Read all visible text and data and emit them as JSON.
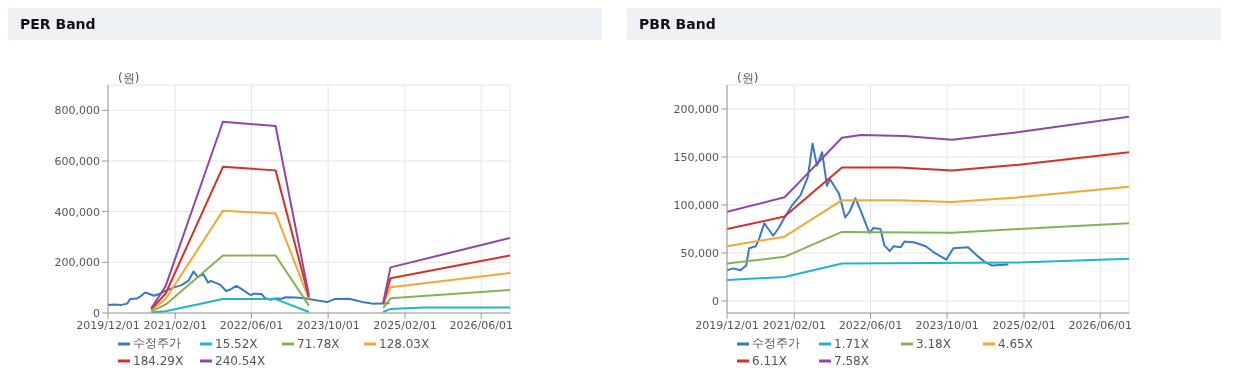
{
  "chart_data": [
    {
      "type": "line",
      "title": "PER Band",
      "ylabel": "(원)",
      "xlim": [
        "2019-12-01",
        "2026-12-01"
      ],
      "ylim": [
        0,
        900000
      ],
      "xticks": [
        {
          "value": "2019-12-01",
          "label": "2019/12/01"
        },
        {
          "value": "2021-02-01",
          "label": "2021/02/01"
        },
        {
          "value": "2022-06-01",
          "label": "2022/06/01"
        },
        {
          "value": "2023-10-01",
          "label": "2023/10/01"
        },
        {
          "value": "2025-02-01",
          "label": "2025/02/01"
        },
        {
          "value": "2026-06-01",
          "label": "2026/06/01"
        }
      ],
      "yticks": [
        {
          "value": 0,
          "label": "0"
        },
        {
          "value": 200000,
          "label": "200,000"
        },
        {
          "value": 400000,
          "label": "400,000"
        },
        {
          "value": 600000,
          "label": "600,000"
        },
        {
          "value": 800000,
          "label": "800,000"
        }
      ],
      "grid": true,
      "legend": "bottom",
      "marker": "none",
      "line_style": "solid",
      "series": [
        {
          "name": "수정주가",
          "color": "#3a78c9",
          "x": [
            "2019-12-01",
            "2020-01-10",
            "2020-02-25",
            "2020-04-01",
            "2020-04-20",
            "2020-06-01",
            "2020-06-25",
            "2020-07-25",
            "2020-09-20",
            "2020-10-25",
            "2020-12-01",
            "2021-01-15",
            "2021-03-12",
            "2021-04-28",
            "2021-05-28",
            "2021-06-25",
            "2021-07-28",
            "2021-08-28",
            "2021-09-15",
            "2021-11-12",
            "2021-12-22",
            "2022-01-18",
            "2022-02-25",
            "2022-03-28",
            "2022-05-25",
            "2022-06-18",
            "2022-08-03",
            "2022-08-28",
            "2022-10-01",
            "2022-10-25",
            "2022-12-10",
            "2023-01-03",
            "2023-03-10",
            "2023-05-18",
            "2023-07-06",
            "2023-09-25",
            "2023-11-10",
            "2024-02-12",
            "2024-04-10",
            "2024-05-25",
            "2024-07-10",
            "2024-10-25"
          ],
          "values": [
            32000,
            34000,
            32000,
            37000,
            55000,
            57000,
            66000,
            81000,
            68000,
            76000,
            87000,
            99000,
            110000,
            129000,
            164000,
            141000,
            155000,
            120000,
            127000,
            112000,
            87000,
            93000,
            107000,
            95000,
            71000,
            76000,
            75000,
            58000,
            52000,
            57000,
            56000,
            62000,
            61000,
            57000,
            51000,
            43000,
            55000,
            56000,
            47000,
            41000,
            37000,
            38000
          ]
        },
        {
          "name": "15.52X",
          "color": "#22b5c8",
          "x": [
            "2020-09-01",
            "2020-12-01",
            "2021-12-01",
            "2022-11-01",
            "2023-06-01",
            "2024-01-01",
            "2024-09-15",
            "2024-11-01",
            "2025-06-01",
            "2026-12-01"
          ],
          "values": [
            2000,
            7000,
            55000,
            55000,
            4000,
            null,
            4000,
            16000,
            22000,
            22000
          ]
        },
        {
          "name": "71.78X",
          "color": "#86b350",
          "x": [
            "2020-09-01",
            "2020-12-01",
            "2021-12-01",
            "2022-11-01",
            "2023-06-01",
            "2024-01-01",
            "2024-09-15",
            "2024-11-01",
            "2026-12-01"
          ],
          "values": [
            7000,
            33000,
            227000,
            227000,
            29000,
            null,
            19000,
            58000,
            91000
          ]
        },
        {
          "name": "128.03X",
          "color": "#f5a733",
          "x": [
            "2020-09-01",
            "2020-12-01",
            "2021-12-01",
            "2022-11-01",
            "2023-06-01",
            "2024-01-01",
            "2024-09-15",
            "2024-11-01",
            "2026-12-01"
          ],
          "values": [
            12000,
            55000,
            404000,
            393000,
            55000,
            null,
            33000,
            102000,
            158000
          ]
        },
        {
          "name": "184.29X",
          "color": "#d7302a",
          "x": [
            "2020-09-01",
            "2020-12-01",
            "2021-12-01",
            "2022-11-01",
            "2023-06-01",
            "2024-01-01",
            "2024-09-15",
            "2024-11-01",
            "2026-12-01"
          ],
          "values": [
            16000,
            76000,
            577000,
            563000,
            62000,
            null,
            36000,
            137000,
            227000
          ]
        },
        {
          "name": "240.54X",
          "color": "#9146a8",
          "x": [
            "2020-09-01",
            "2020-12-01",
            "2021-12-01",
            "2022-11-01",
            "2023-06-01",
            "2024-01-01",
            "2024-09-15",
            "2024-11-01",
            "2026-12-01"
          ],
          "values": [
            19000,
            105000,
            755000,
            738000,
            69000,
            null,
            40000,
            180000,
            296000
          ]
        }
      ]
    },
    {
      "type": "line",
      "title": "PBR Band",
      "ylabel": "(원)",
      "xlim": [
        "2019-12-01",
        "2026-12-01"
      ],
      "ylim": [
        -12500,
        225000
      ],
      "xticks": [
        {
          "value": "2019-12-01",
          "label": "2019/12/01"
        },
        {
          "value": "2021-02-01",
          "label": "2021/02/01"
        },
        {
          "value": "2022-06-01",
          "label": "2022/06/01"
        },
        {
          "value": "2023-10-01",
          "label": "2023/10/01"
        },
        {
          "value": "2025-02-01",
          "label": "2025/02/01"
        },
        {
          "value": "2026-06-01",
          "label": "2026/06/01"
        }
      ],
      "yticks": [
        {
          "value": 0,
          "label": "0"
        },
        {
          "value": 50000,
          "label": "50,000"
        },
        {
          "value": 100000,
          "label": "100,000"
        },
        {
          "value": 150000,
          "label": "150,000"
        },
        {
          "value": 200000,
          "label": "200,000"
        }
      ],
      "grid": true,
      "legend": "bottom",
      "marker": "none",
      "line_style": "solid",
      "series": [
        {
          "name": "수정주가",
          "color": "#3a78c9",
          "x": [
            "2019-12-01",
            "2020-01-10",
            "2020-02-25",
            "2020-04-01",
            "2020-04-20",
            "2020-06-01",
            "2020-06-25",
            "2020-07-25",
            "2020-09-20",
            "2020-10-25",
            "2020-12-01",
            "2021-01-15",
            "2021-03-12",
            "2021-04-28",
            "2021-05-28",
            "2021-06-25",
            "2021-07-28",
            "2021-08-28",
            "2021-09-15",
            "2021-11-12",
            "2021-12-22",
            "2022-01-18",
            "2022-02-25",
            "2022-03-28",
            "2022-05-25",
            "2022-06-18",
            "2022-08-03",
            "2022-08-28",
            "2022-10-01",
            "2022-10-25",
            "2022-12-10",
            "2023-01-03",
            "2023-03-10",
            "2023-05-18",
            "2023-07-06",
            "2023-09-25",
            "2023-11-10",
            "2024-02-12",
            "2024-04-10",
            "2024-05-25",
            "2024-07-10",
            "2024-10-25"
          ],
          "values": [
            32000,
            34000,
            32000,
            37000,
            55000,
            57000,
            66000,
            81000,
            68000,
            76000,
            87000,
            99000,
            110000,
            129000,
            164000,
            141000,
            155000,
            120000,
            127000,
            112000,
            87000,
            93000,
            107000,
            95000,
            71000,
            76000,
            75000,
            58000,
            52000,
            57000,
            56000,
            62000,
            61000,
            57000,
            51000,
            43000,
            55000,
            56000,
            47000,
            41000,
            37000,
            38000
          ]
        },
        {
          "name": "1.71X",
          "color": "#22b5c8",
          "x": [
            "2019-12-01",
            "2020-12-01",
            "2021-12-01",
            "2025-01-01",
            "2026-12-01"
          ],
          "values": [
            22000,
            25000,
            39000,
            40000,
            44000
          ]
        },
        {
          "name": "3.18X",
          "color": "#86b350",
          "x": [
            "2019-12-01",
            "2020-12-01",
            "2021-12-01",
            "2023-11-01",
            "2025-01-01",
            "2026-12-01"
          ],
          "values": [
            39000,
            46000,
            72000,
            71000,
            75000,
            81000
          ]
        },
        {
          "name": "4.65X",
          "color": "#f5a733",
          "x": [
            "2019-12-01",
            "2020-12-01",
            "2021-12-01",
            "2022-12-01",
            "2023-11-01",
            "2025-01-01",
            "2026-12-01"
          ],
          "values": [
            57000,
            67000,
            105000,
            105000,
            103000,
            108000,
            119000
          ]
        },
        {
          "name": "6.11X",
          "color": "#d7302a",
          "x": [
            "2019-12-01",
            "2020-12-01",
            "2021-12-01",
            "2022-12-01",
            "2023-11-01",
            "2025-01-01",
            "2026-12-01"
          ],
          "values": [
            75000,
            88000,
            139000,
            139000,
            136000,
            142000,
            155000
          ]
        },
        {
          "name": "7.58X",
          "color": "#9146a8",
          "x": [
            "2019-12-01",
            "2020-12-01",
            "2021-03-01",
            "2021-12-01",
            "2022-04-01",
            "2023-01-01",
            "2023-11-01",
            "2025-01-01",
            "2026-12-01"
          ],
          "values": [
            93000,
            108000,
            123000,
            170000,
            173000,
            172000,
            168000,
            176000,
            192000
          ]
        }
      ]
    }
  ]
}
